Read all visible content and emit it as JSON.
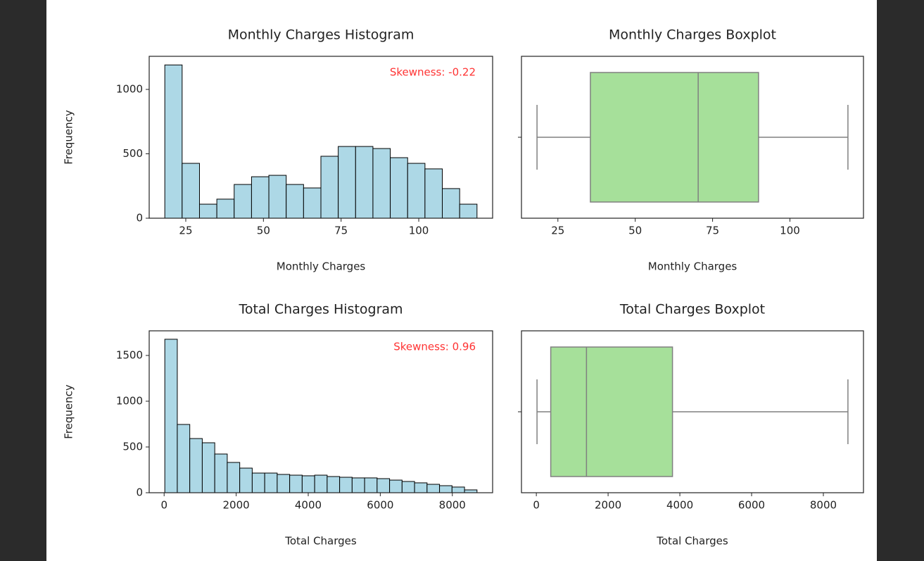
{
  "chart_data": [
    {
      "type": "histogram",
      "title": "Monthly Charges Histogram",
      "xlabel": "Monthly Charges",
      "ylabel": "Frequency",
      "bins": [
        18.25,
        23.83,
        29.42,
        35.0,
        40.58,
        46.17,
        51.75,
        57.33,
        62.92,
        68.5,
        74.08,
        79.67,
        85.25,
        90.83,
        96.42,
        102.0,
        107.58,
        113.17,
        118.75
      ],
      "values": [
        1190,
        426,
        109,
        148,
        262,
        322,
        333,
        262,
        235,
        481,
        557,
        557,
        541,
        470,
        426,
        383,
        230,
        109
      ],
      "color": "#add8e6",
      "edgecolor": "#000000",
      "xlim": [
        13.225,
        123.775
      ],
      "ylim": [
        0,
        1257
      ],
      "xticks": [
        25,
        50,
        75,
        100
      ],
      "yticks": [
        0,
        500,
        1000
      ],
      "annotation": "Skewness: -0.22",
      "annotation_color": "#ff3333"
    },
    {
      "type": "box",
      "title": "Monthly Charges Boxplot",
      "xlabel": "Monthly Charges",
      "box": {
        "whislo": 18.25,
        "q1": 35.5,
        "med": 70.35,
        "q3": 89.85,
        "whishi": 118.75
      },
      "color": "#a6e09a",
      "edgecolor": "#808080",
      "xlim": [
        13.225,
        123.775
      ],
      "xticks": [
        25,
        50,
        75,
        100
      ]
    },
    {
      "type": "histogram",
      "title": "Total Charges Histogram",
      "xlabel": "Total Charges",
      "ylabel": "Frequency",
      "bins": [
        18.8,
        365.44,
        712.08,
        1058.72,
        1405.36,
        1752.0,
        2098.64,
        2445.28,
        2791.92,
        3138.56,
        3485.2,
        3831.84,
        4178.48,
        4525.12,
        4871.76,
        5218.4,
        5565.04,
        5911.68,
        6258.32,
        6604.96,
        6951.6,
        7298.24,
        7644.88,
        7991.52,
        8338.16,
        8684.8
      ],
      "values": [
        1677,
        746,
        592,
        546,
        423,
        331,
        269,
        215,
        215,
        200,
        192,
        185,
        192,
        177,
        169,
        162,
        162,
        154,
        138,
        123,
        108,
        92,
        77,
        62,
        31
      ],
      "color": "#add8e6",
      "edgecolor": "#000000",
      "xlim": [
        -414.5,
        9118.1
      ],
      "ylim": [
        0,
        1769
      ],
      "xticks": [
        0,
        2000,
        4000,
        6000,
        8000
      ],
      "yticks": [
        0,
        500,
        1000,
        1500
      ],
      "annotation": "Skewness: 0.96",
      "annotation_color": "#ff3333"
    },
    {
      "type": "box",
      "title": "Total Charges Boxplot",
      "xlabel": "Total Charges",
      "box": {
        "whislo": 18.8,
        "q1": 401.45,
        "med": 1397.475,
        "q3": 3794.7,
        "whishi": 8684.8
      },
      "color": "#a6e09a",
      "edgecolor": "#808080",
      "xlim": [
        -414.5,
        9118.1
      ],
      "xticks": [
        0,
        2000,
        4000,
        6000,
        8000
      ]
    }
  ]
}
